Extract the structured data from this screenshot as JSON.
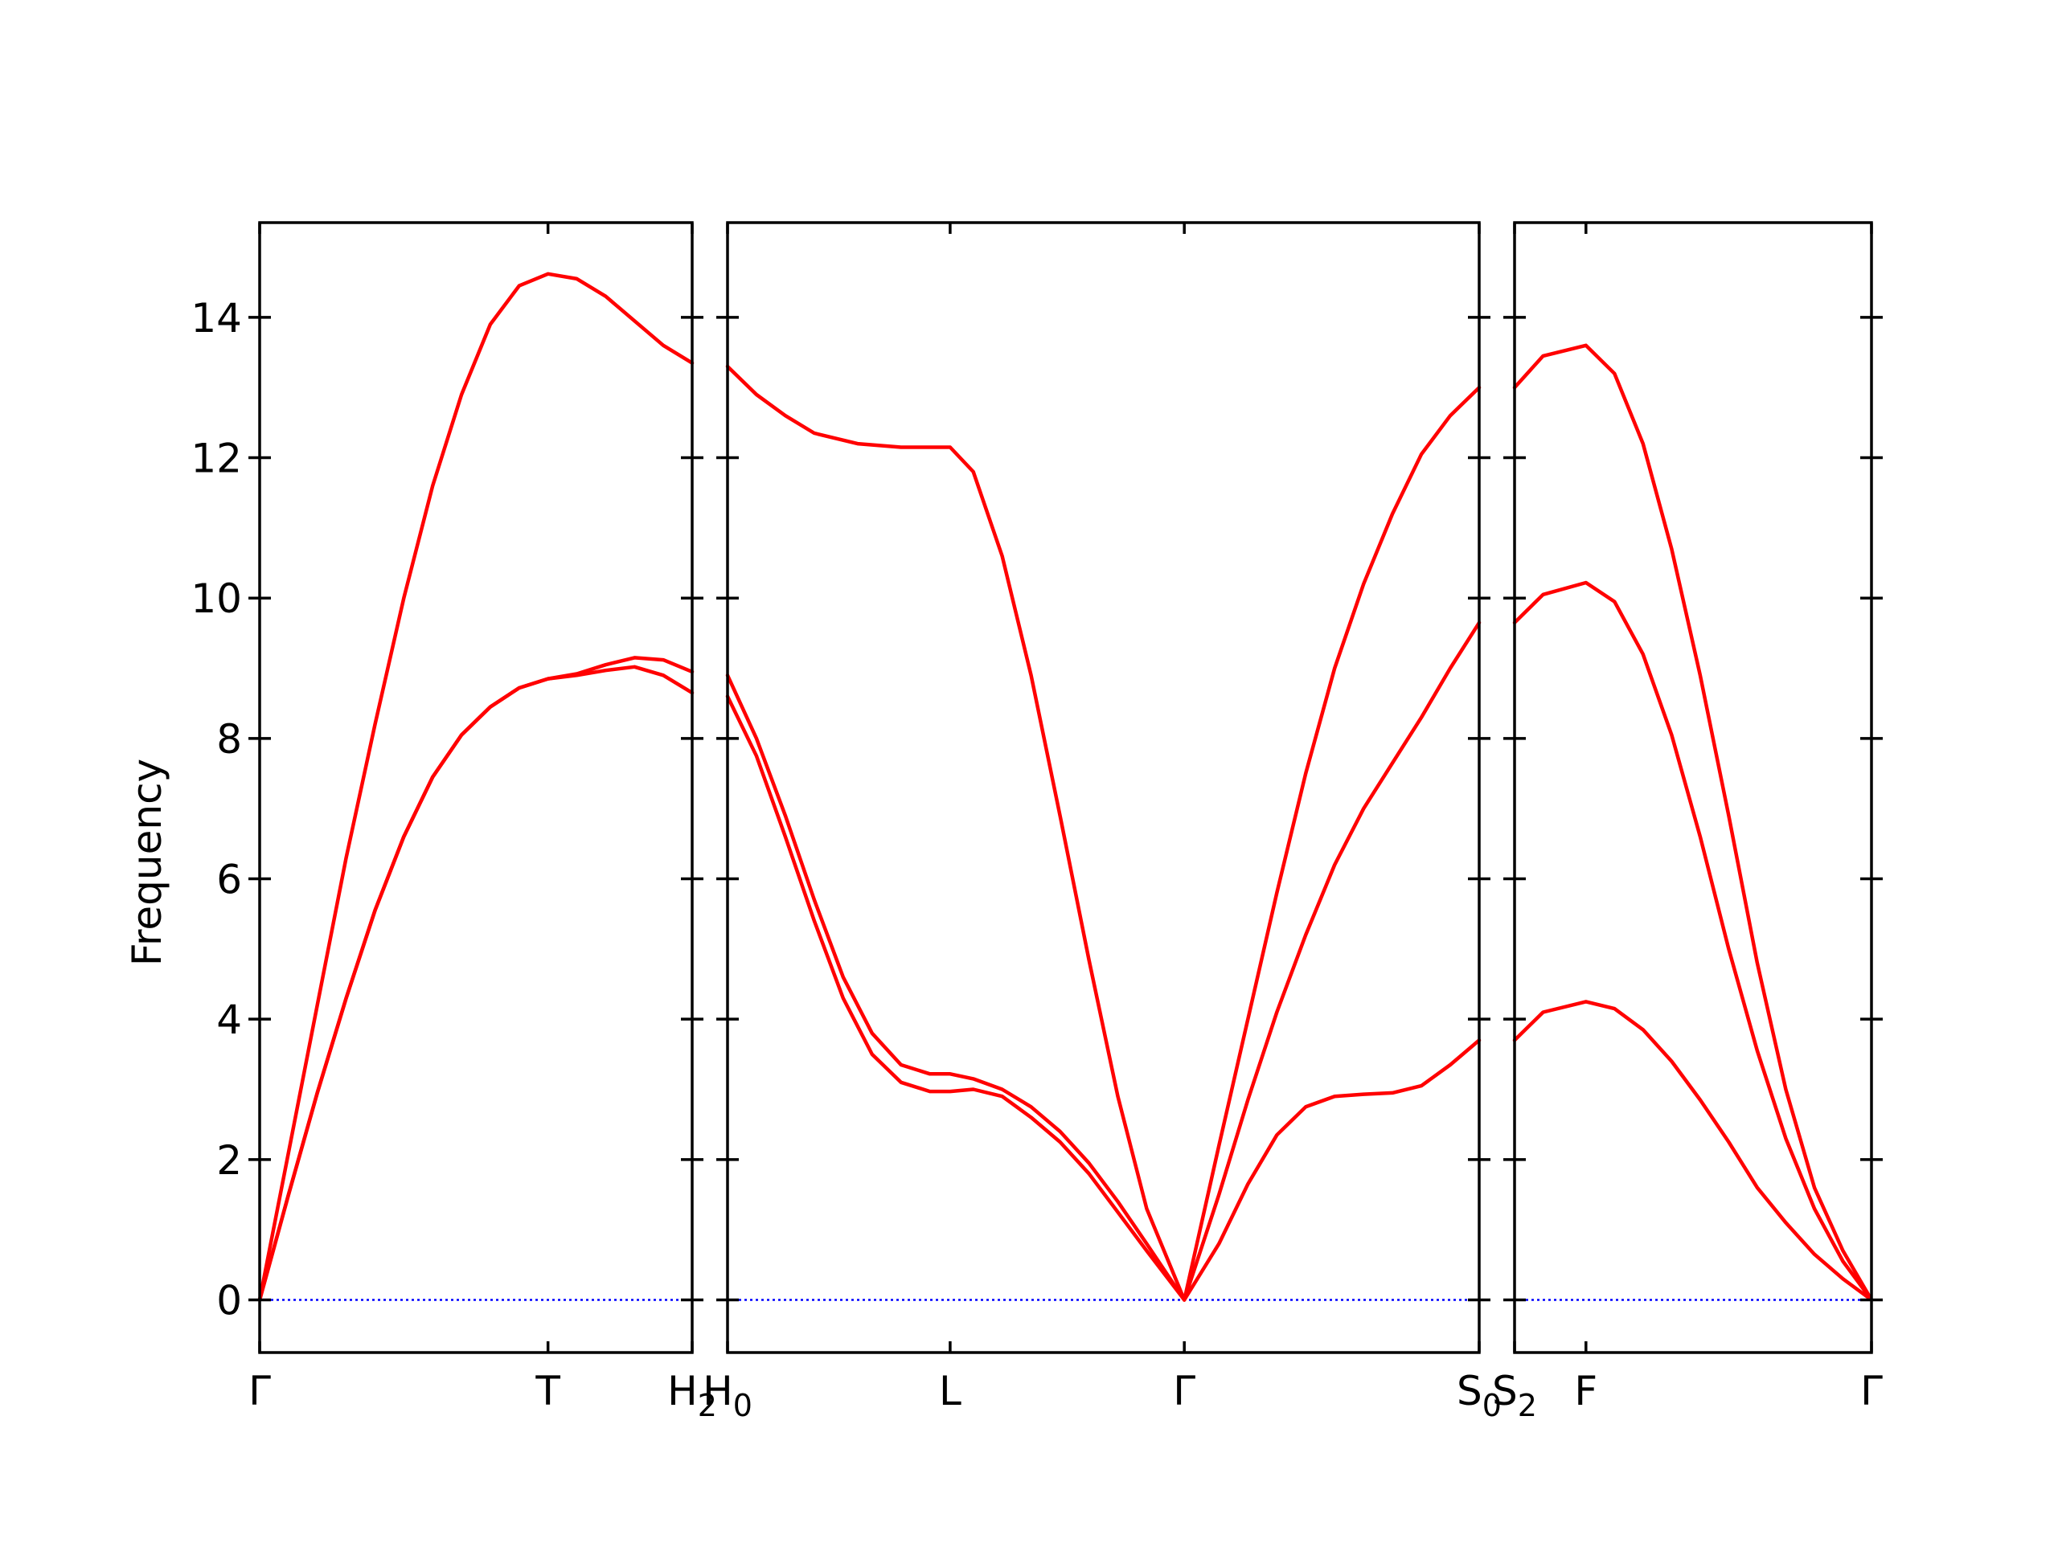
{
  "chart_data": {
    "type": "line",
    "ylabel": "Frequency",
    "ylim": [
      -0.75,
      15.35
    ],
    "yticks": [
      0,
      2,
      4,
      6,
      8,
      10,
      12,
      14
    ],
    "ytick_labels": [
      "0",
      "2",
      "4",
      "6",
      "8",
      "10",
      "12",
      "14"
    ],
    "line_color": "#ff0000",
    "zero_line_color": "#0000ff",
    "panels": [
      {
        "xlim": [
          0,
          1.5
        ],
        "xticks": [
          0,
          1.0,
          1.5
        ],
        "xtick_labels": [
          {
            "main": "Γ",
            "sub": ""
          },
          {
            "main": "T",
            "sub": ""
          },
          {
            "main": "H",
            "sub": "2"
          }
        ],
        "series": [
          {
            "values": [
              [
                0,
                0
              ],
              [
                0.1,
                2.1
              ],
              [
                0.2,
                4.2
              ],
              [
                0.3,
                6.3
              ],
              [
                0.4,
                8.2
              ],
              [
                0.5,
                10.0
              ],
              [
                0.6,
                11.6
              ],
              [
                0.7,
                12.9
              ],
              [
                0.8,
                13.9
              ],
              [
                0.9,
                14.45
              ],
              [
                1.0,
                14.62
              ],
              [
                1.1,
                14.55
              ],
              [
                1.2,
                14.3
              ],
              [
                1.3,
                13.95
              ],
              [
                1.4,
                13.6
              ],
              [
                1.5,
                13.35
              ]
            ]
          },
          {
            "values": [
              [
                0,
                0
              ],
              [
                0.1,
                1.5
              ],
              [
                0.2,
                2.95
              ],
              [
                0.3,
                4.3
              ],
              [
                0.4,
                5.55
              ],
              [
                0.5,
                6.6
              ],
              [
                0.6,
                7.45
              ],
              [
                0.7,
                8.05
              ],
              [
                0.8,
                8.45
              ],
              [
                0.9,
                8.72
              ],
              [
                1.0,
                8.85
              ],
              [
                1.1,
                8.9
              ],
              [
                1.2,
                8.97
              ],
              [
                1.3,
                9.02
              ],
              [
                1.4,
                8.9
              ],
              [
                1.5,
                8.65
              ]
            ]
          },
          {
            "values": [
              [
                0,
                0
              ],
              [
                0.1,
                1.5
              ],
              [
                0.2,
                2.95
              ],
              [
                0.3,
                4.3
              ],
              [
                0.4,
                5.55
              ],
              [
                0.5,
                6.6
              ],
              [
                0.6,
                7.45
              ],
              [
                0.7,
                8.05
              ],
              [
                0.8,
                8.45
              ],
              [
                0.9,
                8.72
              ],
              [
                1.0,
                8.85
              ],
              [
                1.1,
                8.92
              ],
              [
                1.2,
                9.05
              ],
              [
                1.3,
                9.15
              ],
              [
                1.4,
                9.12
              ],
              [
                1.5,
                8.95
              ]
            ]
          }
        ]
      },
      {
        "xlim": [
          0,
          2.6
        ],
        "xticks": [
          0,
          0.77,
          1.58,
          2.6
        ],
        "xtick_labels": [
          {
            "main": "H",
            "sub": "0"
          },
          {
            "main": "L",
            "sub": ""
          },
          {
            "main": "Γ",
            "sub": ""
          },
          {
            "main": "S",
            "sub": "0"
          }
        ],
        "series": [
          {
            "values": [
              [
                0,
                13.3
              ],
              [
                0.1,
                12.9
              ],
              [
                0.2,
                12.6
              ],
              [
                0.3,
                12.35
              ],
              [
                0.45,
                12.2
              ],
              [
                0.6,
                12.15
              ],
              [
                0.77,
                12.15
              ],
              [
                0.85,
                11.8
              ],
              [
                0.95,
                10.6
              ],
              [
                1.05,
                8.9
              ],
              [
                1.15,
                6.9
              ],
              [
                1.25,
                4.85
              ],
              [
                1.35,
                2.9
              ],
              [
                1.45,
                1.3
              ],
              [
                1.58,
                0
              ],
              [
                1.7,
                2.2
              ],
              [
                1.8,
                4.0
              ],
              [
                1.9,
                5.8
              ],
              [
                2.0,
                7.5
              ],
              [
                2.1,
                9.0
              ],
              [
                2.2,
                10.2
              ],
              [
                2.3,
                11.2
              ],
              [
                2.4,
                12.05
              ],
              [
                2.5,
                12.6
              ],
              [
                2.6,
                13.0
              ]
            ]
          },
          {
            "values": [
              [
                0,
                8.9
              ],
              [
                0.1,
                8.0
              ],
              [
                0.2,
                6.9
              ],
              [
                0.3,
                5.7
              ],
              [
                0.4,
                4.6
              ],
              [
                0.5,
                3.8
              ],
              [
                0.6,
                3.35
              ],
              [
                0.7,
                3.22
              ],
              [
                0.77,
                3.22
              ],
              [
                0.85,
                3.15
              ],
              [
                0.95,
                3.0
              ],
              [
                1.05,
                2.75
              ],
              [
                1.15,
                2.4
              ],
              [
                1.25,
                1.95
              ],
              [
                1.35,
                1.4
              ],
              [
                1.45,
                0.8
              ],
              [
                1.58,
                0
              ],
              [
                1.7,
                1.5
              ],
              [
                1.8,
                2.85
              ],
              [
                1.9,
                4.1
              ],
              [
                2.0,
                5.2
              ],
              [
                2.1,
                6.2
              ],
              [
                2.2,
                7.0
              ],
              [
                2.3,
                7.65
              ],
              [
                2.4,
                8.3
              ],
              [
                2.5,
                9.0
              ],
              [
                2.6,
                9.65
              ]
            ]
          },
          {
            "values": [
              [
                0,
                8.6
              ],
              [
                0.1,
                7.75
              ],
              [
                0.2,
                6.6
              ],
              [
                0.3,
                5.4
              ],
              [
                0.4,
                4.3
              ],
              [
                0.5,
                3.5
              ],
              [
                0.6,
                3.1
              ],
              [
                0.7,
                2.97
              ],
              [
                0.77,
                2.97
              ],
              [
                0.85,
                3.0
              ],
              [
                0.95,
                2.9
              ],
              [
                1.05,
                2.6
              ],
              [
                1.15,
                2.25
              ],
              [
                1.25,
                1.8
              ],
              [
                1.35,
                1.25
              ],
              [
                1.45,
                0.7
              ],
              [
                1.58,
                0
              ],
              [
                1.7,
                0.8
              ],
              [
                1.8,
                1.65
              ],
              [
                1.9,
                2.35
              ],
              [
                2.0,
                2.75
              ],
              [
                2.1,
                2.9
              ],
              [
                2.2,
                2.93
              ],
              [
                2.3,
                2.95
              ],
              [
                2.4,
                3.05
              ],
              [
                2.5,
                3.35
              ],
              [
                2.6,
                3.7
              ]
            ]
          }
        ]
      },
      {
        "xlim": [
          0,
          1.25
        ],
        "xticks": [
          0,
          0.25,
          1.25
        ],
        "xtick_labels": [
          {
            "main": "S",
            "sub": "2"
          },
          {
            "main": "F",
            "sub": ""
          },
          {
            "main": "Γ",
            "sub": ""
          }
        ],
        "series": [
          {
            "values": [
              [
                0,
                13.0
              ],
              [
                0.1,
                13.45
              ],
              [
                0.25,
                13.6
              ],
              [
                0.35,
                13.2
              ],
              [
                0.45,
                12.2
              ],
              [
                0.55,
                10.7
              ],
              [
                0.65,
                8.9
              ],
              [
                0.75,
                6.9
              ],
              [
                0.85,
                4.8
              ],
              [
                0.95,
                3.0
              ],
              [
                1.05,
                1.6
              ],
              [
                1.15,
                0.7
              ],
              [
                1.25,
                0
              ]
            ]
          },
          {
            "values": [
              [
                0,
                9.65
              ],
              [
                0.1,
                10.05
              ],
              [
                0.25,
                10.22
              ],
              [
                0.35,
                9.95
              ],
              [
                0.45,
                9.2
              ],
              [
                0.55,
                8.05
              ],
              [
                0.65,
                6.6
              ],
              [
                0.75,
                5.0
              ],
              [
                0.85,
                3.55
              ],
              [
                0.95,
                2.3
              ],
              [
                1.05,
                1.3
              ],
              [
                1.15,
                0.55
              ],
              [
                1.25,
                0
              ]
            ]
          },
          {
            "values": [
              [
                0,
                3.7
              ],
              [
                0.1,
                4.1
              ],
              [
                0.25,
                4.25
              ],
              [
                0.35,
                4.15
              ],
              [
                0.45,
                3.85
              ],
              [
                0.55,
                3.4
              ],
              [
                0.65,
                2.85
              ],
              [
                0.75,
                2.25
              ],
              [
                0.85,
                1.6
              ],
              [
                0.95,
                1.1
              ],
              [
                1.05,
                0.65
              ],
              [
                1.15,
                0.3
              ],
              [
                1.25,
                0
              ]
            ]
          }
        ]
      }
    ]
  }
}
